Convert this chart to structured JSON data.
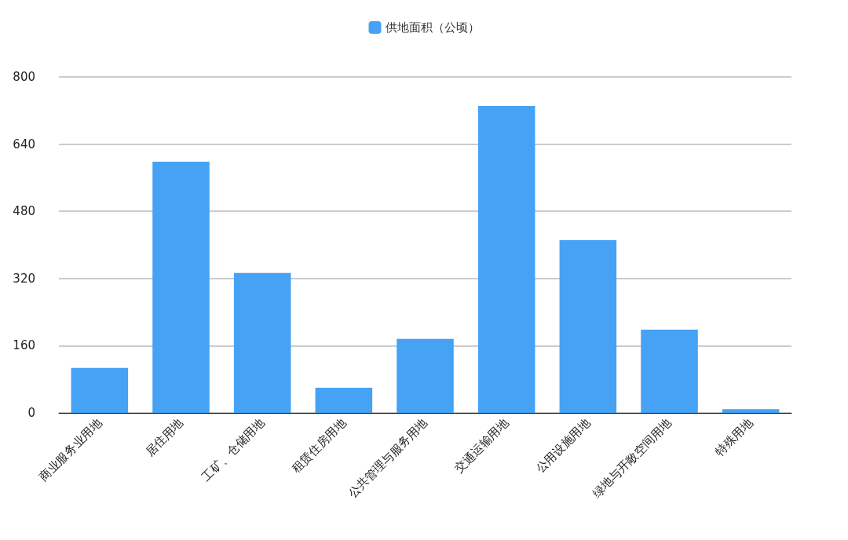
{
  "chart_data": {
    "type": "bar",
    "categories": [
      "商业服务业用地",
      "居住用地",
      "工矿、仓储用地",
      "租赁住房用地",
      "公共管理与服务用地",
      "交通运输用地",
      "公用设施用地",
      "绿地与开敞空间用地",
      "特殊用地"
    ],
    "series": [
      {
        "name": "供地面积（公顷）",
        "color": "#46a2f5",
        "values": [
          107,
          598,
          333,
          60,
          176,
          731,
          411,
          198,
          9
        ]
      }
    ],
    "ylim": [
      0,
      800
    ],
    "yticks": [
      0,
      160,
      320,
      480,
      640,
      800
    ],
    "grid": "y",
    "legend": "top"
  }
}
